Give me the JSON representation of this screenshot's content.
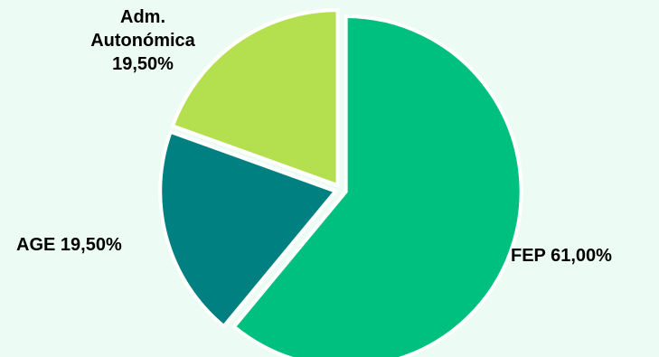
{
  "chart_data": {
    "type": "pie",
    "title": "",
    "slices": [
      {
        "name": "FEP",
        "value": 61.0,
        "color": "#00c080",
        "label_lines": [
          "FEP 61,00%"
        ]
      },
      {
        "name": "AGE",
        "value": 19.5,
        "color": "#008080",
        "label_lines": [
          "AGE 19,50%"
        ]
      },
      {
        "name": "Adm. Autonómica",
        "value": 19.5,
        "color": "#b4e050",
        "label_lines": [
          "Adm.",
          "Autonómica",
          "19,50%"
        ]
      }
    ],
    "legend": "none"
  }
}
